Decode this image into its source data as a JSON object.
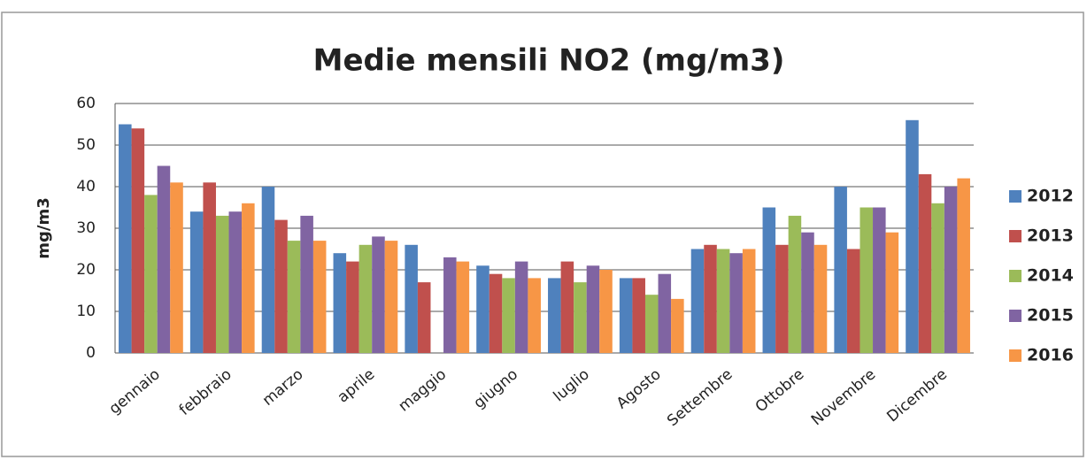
{
  "chart_data": {
    "type": "bar",
    "title": "Medie mensili NO2 (mg/m3)",
    "y_label": "mg/m3",
    "categories": [
      "gennaio",
      "febbraio",
      "marzo",
      "aprile",
      "maggio",
      "giugno",
      "luglio",
      "Agosto",
      "Settembre",
      "Ottobre",
      "Novembre",
      "Dicembre"
    ],
    "series": [
      {
        "name": "2012",
        "color": "#4f81bd",
        "values": [
          55,
          34,
          40,
          24,
          26,
          21,
          18,
          18,
          25,
          35,
          40,
          56
        ]
      },
      {
        "name": "2013",
        "color": "#c0504d",
        "values": [
          54,
          41,
          32,
          22,
          17,
          19,
          22,
          18,
          26,
          26,
          25,
          43
        ]
      },
      {
        "name": "2014",
        "color": "#9bbb59",
        "values": [
          38,
          33,
          27,
          26,
          null,
          18,
          17,
          14,
          25,
          33,
          35,
          36
        ]
      },
      {
        "name": "2015",
        "color": "#8064a2",
        "values": [
          45,
          34,
          33,
          28,
          23,
          22,
          21,
          19,
          24,
          29,
          35,
          40
        ]
      },
      {
        "name": "2016",
        "color": "#f79646",
        "values": [
          41,
          36,
          27,
          27,
          22,
          18,
          20,
          13,
          25,
          26,
          29,
          42
        ]
      }
    ],
    "ylim": [
      0,
      60
    ],
    "yticks": [
      0,
      10,
      20,
      30,
      40,
      50,
      60
    ],
    "grid": true,
    "legend": "right"
  }
}
